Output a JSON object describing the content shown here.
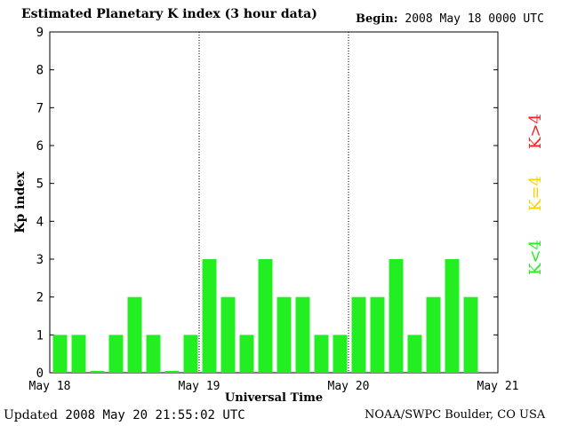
{
  "header": {
    "title": "Estimated Planetary K index (3 hour data)",
    "begin_label": "Begin:",
    "begin_value": "2008 May 18 0000 UTC"
  },
  "footer": {
    "updated_label": "Updated",
    "updated_value": "2008 May 20 21:55:02 UTC",
    "credit": "NOAA/SWPC Boulder, CO USA"
  },
  "legend": [
    {
      "label": "K>4",
      "color": "#ff2020"
    },
    {
      "label": "K=4",
      "color": "#ffd000"
    },
    {
      "label": "K<4",
      "color": "#22ee22"
    }
  ],
  "chart_data": {
    "type": "bar",
    "title": "Estimated Planetary K index (3 hour data)",
    "xlabel": "Universal Time",
    "ylabel": "Kp index",
    "ylim": [
      0,
      9
    ],
    "yticks": [
      "0",
      "1",
      "2",
      "3",
      "4",
      "5",
      "6",
      "7",
      "8",
      "9"
    ],
    "xticks": [
      "May 18",
      "May 19",
      "May 20",
      "May 21"
    ],
    "bar_color": "#22ee22",
    "values": [
      1,
      1,
      0.05,
      1,
      2,
      1,
      0.05,
      1,
      3,
      2,
      1,
      3,
      2,
      2,
      1,
      1,
      2,
      2,
      3,
      1,
      2,
      3,
      2
    ]
  }
}
